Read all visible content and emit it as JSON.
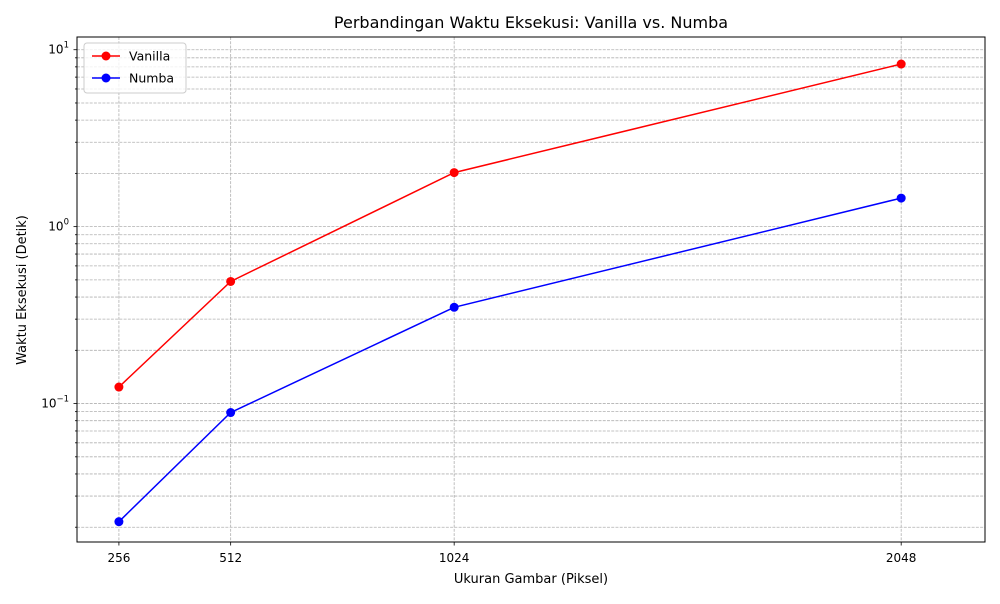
{
  "chart_data": {
    "type": "line",
    "title": "Perbandingan Waktu Eksekusi: Vanilla vs. Numba",
    "xlabel": "Ukuran Gambar (Piksel)",
    "ylabel": "Waktu Eksekusi (Detik)",
    "x": [
      256,
      512,
      1024,
      2048
    ],
    "x_tick_labels": [
      "256",
      "512",
      "1024",
      "2048"
    ],
    "xlim": [
      160,
      2240
    ],
    "y_scale": "log",
    "ylim": [
      0.0165,
      11.8
    ],
    "y_ticks": [
      {
        "value": 0.1,
        "base": "10",
        "exp": "−1"
      },
      {
        "value": 1,
        "base": "10",
        "exp": "0"
      },
      {
        "value": 10,
        "base": "10",
        "exp": "1"
      }
    ],
    "grid": true,
    "legend": "top-left",
    "series": [
      {
        "name": "Vanilla",
        "color": "#ff0000",
        "marker": "circle",
        "values": [
          0.124,
          0.49,
          2.02,
          8.3
        ]
      },
      {
        "name": "Numba",
        "color": "#0000ff",
        "marker": "circle",
        "values": [
          0.0215,
          0.089,
          0.35,
          1.45
        ]
      }
    ]
  }
}
